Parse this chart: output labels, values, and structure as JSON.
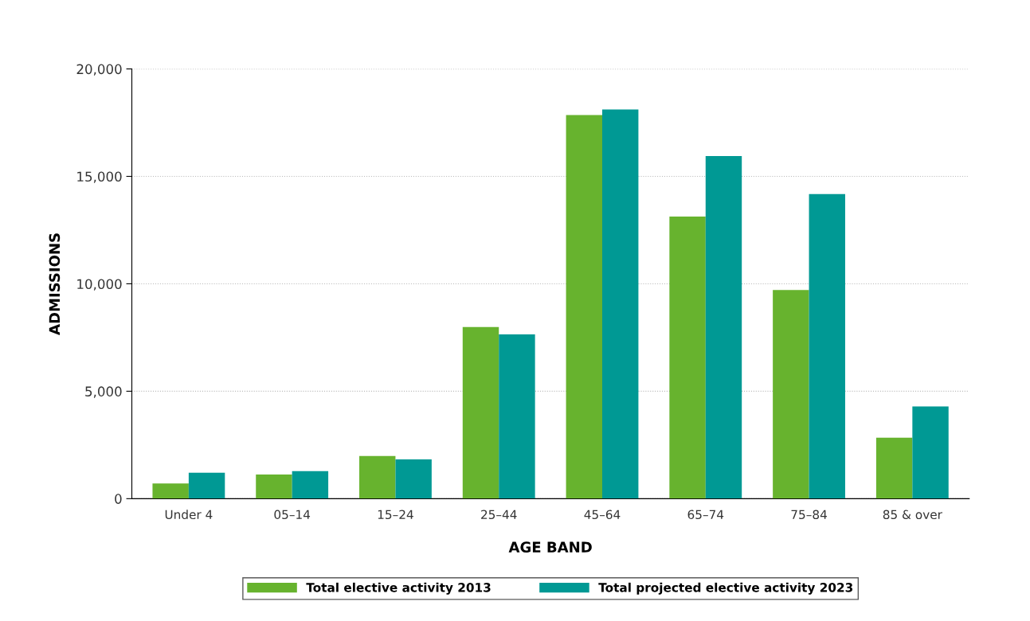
{
  "chart_data": {
    "type": "bar",
    "xlabel": "AGE BAND",
    "ylabel": "ADMISSIONS",
    "categories": [
      "Under 4",
      "05–14",
      "15–24",
      "25–44",
      "45–64",
      "65–74",
      "75–84",
      "85 & over"
    ],
    "series": [
      {
        "name": "Total elective activity 2013",
        "color": "#67b32e",
        "values": [
          710,
          1120,
          1990,
          7990,
          17850,
          13125,
          9715,
          2840
        ]
      },
      {
        "name": "Total projected elective activity 2023",
        "color": "#009994",
        "values": [
          1205,
          1280,
          1830,
          7650,
          18115,
          15950,
          14175,
          4290
        ]
      }
    ],
    "ylim": [
      0,
      20000
    ],
    "yticks": [
      0,
      {
        "value": 5000,
        "label": "5,000"
      },
      {
        "value": 10000,
        "label": "10,000"
      },
      {
        "value": 15000,
        "label": "15,000"
      },
      {
        "value": 20000,
        "label": "20,000"
      }
    ],
    "grid": "y",
    "legend": "bottom"
  }
}
